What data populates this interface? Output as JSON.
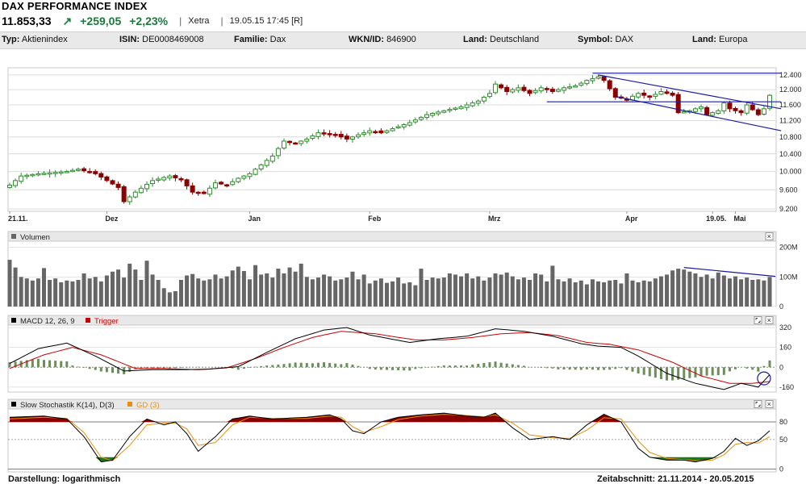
{
  "header": {
    "title": "DAX PERFORMANCE INDEX",
    "price": "11.853,33",
    "arrow": "↗",
    "change": "+259,05",
    "change_pct": "+2,23%",
    "exchange": "Xetra",
    "datetime": "19.05.15 17:45 [R]"
  },
  "infobar": [
    {
      "label": "Typ:",
      "value": "Aktienindex"
    },
    {
      "label": "ISIN:",
      "value": "DE0008469008"
    },
    {
      "label": "Familie:",
      "value": "Dax"
    },
    {
      "label": "WKN/ID:",
      "value": "846900"
    },
    {
      "label": "Land:",
      "value": "Deutschland"
    },
    {
      "label": "Symbol:",
      "value": "DAX"
    },
    {
      "label": "Land:",
      "value": "Europa"
    }
  ],
  "footer": {
    "left": "Darstellung: logarithmisch",
    "right": "Zeitabschnitt: 21.11.2014 - 20.05.2015"
  },
  "colors": {
    "up": "#2e8b2e",
    "down": "#8b0000",
    "volume": "#666666",
    "macd": "#000000",
    "trigger": "#cc0000",
    "histogram": "#6b8e5a",
    "stoch_k": "#000000",
    "stoch_d": "#e8900c",
    "stoch_fill_high": "#8b0000",
    "stoch_fill_low": "#1a7a1a",
    "trend": "#1a1aa0",
    "panel_header": "#e8e8e8"
  },
  "chart_data": [
    {
      "type": "candlestick",
      "scale": "log",
      "yticks": [
        "12.400",
        "12.000",
        "11.600",
        "11.200",
        "10.800",
        "10.400",
        "10.000",
        "9.600",
        "9.200"
      ],
      "ytick_values": [
        12400,
        12000,
        11600,
        11200,
        10800,
        10400,
        10000,
        9600,
        9200
      ],
      "ylim": [
        9150,
        12600
      ],
      "xlabels": [
        "21.11.",
        "Dez",
        "Jan",
        "Feb",
        "Mrz",
        "Apr",
        "Mai",
        "19.05."
      ],
      "xlabel_index": [
        0,
        17,
        42,
        63,
        84,
        108,
        127,
        123
      ],
      "anchors": [
        [
          0,
          9700
        ],
        [
          2,
          9900
        ],
        [
          5,
          9950
        ],
        [
          10,
          10000
        ],
        [
          12,
          10050
        ],
        [
          15,
          9950
        ],
        [
          19,
          9650
        ],
        [
          20,
          9350
        ],
        [
          22,
          9550
        ],
        [
          25,
          9800
        ],
        [
          28,
          9900
        ],
        [
          30,
          9820
        ],
        [
          32,
          9550
        ],
        [
          34,
          9520
        ],
        [
          36,
          9750
        ],
        [
          38,
          9700
        ],
        [
          40,
          9850
        ],
        [
          42,
          9950
        ],
        [
          44,
          10150
        ],
        [
          46,
          10350
        ],
        [
          48,
          10700
        ],
        [
          50,
          10650
        ],
        [
          52,
          10750
        ],
        [
          54,
          10900
        ],
        [
          57,
          10850
        ],
        [
          59,
          10750
        ],
        [
          61,
          10850
        ],
        [
          63,
          10950
        ],
        [
          65,
          10900
        ],
        [
          67,
          11000
        ],
        [
          70,
          11150
        ],
        [
          73,
          11350
        ],
        [
          76,
          11450
        ],
        [
          79,
          11550
        ],
        [
          82,
          11700
        ],
        [
          84,
          11900
        ],
        [
          85,
          12150
        ],
        [
          87,
          11950
        ],
        [
          89,
          12050
        ],
        [
          91,
          11900
        ],
        [
          93,
          12050
        ],
        [
          95,
          11950
        ],
        [
          97,
          12050
        ],
        [
          99,
          12100
        ],
        [
          101,
          12250
        ],
        [
          103,
          12350
        ],
        [
          104,
          12250
        ],
        [
          106,
          11800
        ],
        [
          108,
          11750
        ],
        [
          110,
          11900
        ],
        [
          112,
          11800
        ],
        [
          114,
          11950
        ],
        [
          116,
          11850
        ],
        [
          117,
          11400
        ],
        [
          119,
          11450
        ],
        [
          121,
          11550
        ],
        [
          122,
          11350
        ],
        [
          124,
          11450
        ],
        [
          125,
          11650
        ],
        [
          126,
          11500
        ],
        [
          128,
          11400
        ],
        [
          129,
          11600
        ],
        [
          131,
          11350
        ],
        [
          132,
          11500
        ],
        [
          133,
          11850
        ]
      ],
      "trend_lines": [
        {
          "from": [
            102,
            12450
          ],
          "to": [
            135,
            12450
          ]
        },
        {
          "from": [
            103,
            12400
          ],
          "to": [
            135,
            11500
          ]
        },
        {
          "from": [
            94,
            11680
          ],
          "to": [
            135,
            11680
          ]
        },
        {
          "from": [
            106,
            11820
          ],
          "to": [
            135,
            10950
          ]
        }
      ]
    },
    {
      "type": "bar",
      "title": "Volumen",
      "yticks": [
        "200M",
        "100M",
        "0"
      ],
      "ytick_values": [
        200,
        100,
        0
      ],
      "ylim": [
        0,
        210
      ],
      "values": [
        158,
        132,
        100,
        95,
        88,
        95,
        130,
        90,
        95,
        82,
        88,
        85,
        90,
        112,
        95,
        100,
        85,
        105,
        118,
        125,
        98,
        145,
        125,
        90,
        155,
        108,
        90,
        62,
        48,
        52,
        90,
        105,
        110,
        95,
        88,
        92,
        108,
        95,
        102,
        122,
        135,
        120,
        92,
        140,
        108,
        112,
        98,
        128,
        112,
        132,
        118,
        145,
        100,
        92,
        98,
        108,
        102,
        88,
        92,
        98,
        118,
        92,
        108,
        78,
        88,
        95,
        80,
        85,
        98,
        78,
        82,
        72,
        128,
        90,
        98,
        95,
        98,
        112,
        108,
        102,
        112,
        95,
        102,
        88,
        98,
        112,
        108,
        115,
        102,
        92,
        98,
        90,
        112,
        108,
        85,
        138,
        92,
        85,
        95,
        82,
        88,
        75,
        92,
        85,
        82,
        88,
        90,
        78,
        112,
        88,
        82,
        88,
        85,
        95,
        102,
        108,
        122,
        128,
        125,
        118,
        112,
        100,
        108,
        95,
        115,
        105,
        95,
        102,
        92,
        98,
        90,
        92,
        88,
        100
      ],
      "trend_line": {
        "from": [
          118,
          132
        ],
        "to": [
          134,
          102
        ]
      }
    },
    {
      "type": "line",
      "title": "MACD 12, 26, 9",
      "legend": [
        "MACD 12, 26, 9",
        "Trigger"
      ],
      "yticks": [
        "320",
        "160",
        "0",
        "-160"
      ],
      "ytick_values": [
        320,
        160,
        0,
        -160
      ],
      "ylim": [
        -200,
        340
      ],
      "macd_anchors": [
        [
          0,
          30
        ],
        [
          5,
          150
        ],
        [
          10,
          195
        ],
        [
          15,
          90
        ],
        [
          20,
          -30
        ],
        [
          25,
          -20
        ],
        [
          30,
          -20
        ],
        [
          35,
          -15
        ],
        [
          40,
          5
        ],
        [
          45,
          120
        ],
        [
          50,
          230
        ],
        [
          55,
          300
        ],
        [
          59,
          320
        ],
        [
          63,
          260
        ],
        [
          70,
          200
        ],
        [
          75,
          230
        ],
        [
          80,
          250
        ],
        [
          85,
          310
        ],
        [
          90,
          290
        ],
        [
          95,
          250
        ],
        [
          100,
          190
        ],
        [
          103,
          170
        ],
        [
          107,
          160
        ],
        [
          110,
          90
        ],
        [
          115,
          -50
        ],
        [
          120,
          -130
        ],
        [
          125,
          -180
        ],
        [
          128,
          -130
        ],
        [
          131,
          -160
        ],
        [
          133,
          -60
        ]
      ],
      "trigger_anchors": [
        [
          0,
          -10
        ],
        [
          6,
          100
        ],
        [
          11,
          160
        ],
        [
          16,
          100
        ],
        [
          22,
          -10
        ],
        [
          27,
          -10
        ],
        [
          33,
          -20
        ],
        [
          38,
          -5
        ],
        [
          43,
          70
        ],
        [
          48,
          160
        ],
        [
          53,
          240
        ],
        [
          58,
          290
        ],
        [
          64,
          270
        ],
        [
          71,
          220
        ],
        [
          76,
          220
        ],
        [
          81,
          240
        ],
        [
          86,
          270
        ],
        [
          91,
          280
        ],
        [
          96,
          255
        ],
        [
          101,
          200
        ],
        [
          105,
          185
        ],
        [
          110,
          140
        ],
        [
          116,
          40
        ],
        [
          121,
          -70
        ],
        [
          126,
          -130
        ],
        [
          130,
          -130
        ],
        [
          133,
          -115
        ]
      ]
    },
    {
      "type": "line",
      "title": "Slow Stochastik K(14), D(3)",
      "legend": [
        "Slow Stochastik K(14), D(3)",
        "GD (3)"
      ],
      "yticks": [
        "80",
        "50",
        "0"
      ],
      "ytick_values": [
        80,
        50,
        0
      ],
      "ylim": [
        -5,
        102
      ],
      "k_anchors": [
        [
          0,
          88
        ],
        [
          6,
          90
        ],
        [
          10,
          85
        ],
        [
          13,
          55
        ],
        [
          16,
          12
        ],
        [
          18,
          15
        ],
        [
          21,
          55
        ],
        [
          24,
          85
        ],
        [
          27,
          75
        ],
        [
          29,
          80
        ],
        [
          31,
          60
        ],
        [
          33,
          30
        ],
        [
          36,
          55
        ],
        [
          39,
          85
        ],
        [
          42,
          90
        ],
        [
          46,
          85
        ],
        [
          52,
          88
        ],
        [
          56,
          92
        ],
        [
          58,
          85
        ],
        [
          60,
          65
        ],
        [
          62,
          60
        ],
        [
          65,
          80
        ],
        [
          68,
          88
        ],
        [
          72,
          92
        ],
        [
          76,
          95
        ],
        [
          80,
          90
        ],
        [
          83,
          88
        ],
        [
          85,
          95
        ],
        [
          88,
          70
        ],
        [
          91,
          50
        ],
        [
          95,
          55
        ],
        [
          98,
          50
        ],
        [
          101,
          75
        ],
        [
          104,
          93
        ],
        [
          107,
          80
        ],
        [
          110,
          35
        ],
        [
          112,
          20
        ],
        [
          115,
          15
        ],
        [
          118,
          15
        ],
        [
          120,
          12
        ],
        [
          123,
          18
        ],
        [
          125,
          30
        ],
        [
          127,
          52
        ],
        [
          129,
          40
        ],
        [
          131,
          48
        ],
        [
          133,
          65
        ]
      ],
      "d_anchors": [
        [
          0,
          85
        ],
        [
          6,
          88
        ],
        [
          10,
          86
        ],
        [
          13,
          62
        ],
        [
          16,
          20
        ],
        [
          18,
          14
        ],
        [
          21,
          40
        ],
        [
          24,
          75
        ],
        [
          27,
          78
        ],
        [
          29,
          78
        ],
        [
          31,
          68
        ],
        [
          33,
          40
        ],
        [
          36,
          45
        ],
        [
          39,
          75
        ],
        [
          42,
          88
        ],
        [
          46,
          86
        ],
        [
          52,
          86
        ],
        [
          56,
          90
        ],
        [
          58,
          88
        ],
        [
          60,
          72
        ],
        [
          62,
          62
        ],
        [
          65,
          72
        ],
        [
          68,
          84
        ],
        [
          72,
          90
        ],
        [
          76,
          93
        ],
        [
          80,
          91
        ],
        [
          83,
          89
        ],
        [
          85,
          92
        ],
        [
          88,
          78
        ],
        [
          91,
          58
        ],
        [
          95,
          53
        ],
        [
          98,
          52
        ],
        [
          101,
          66
        ],
        [
          104,
          87
        ],
        [
          107,
          85
        ],
        [
          110,
          48
        ],
        [
          112,
          28
        ],
        [
          115,
          18
        ],
        [
          118,
          16
        ],
        [
          120,
          14
        ],
        [
          123,
          15
        ],
        [
          125,
          24
        ],
        [
          127,
          42
        ],
        [
          129,
          45
        ],
        [
          131,
          44
        ],
        [
          133,
          55
        ]
      ]
    }
  ]
}
